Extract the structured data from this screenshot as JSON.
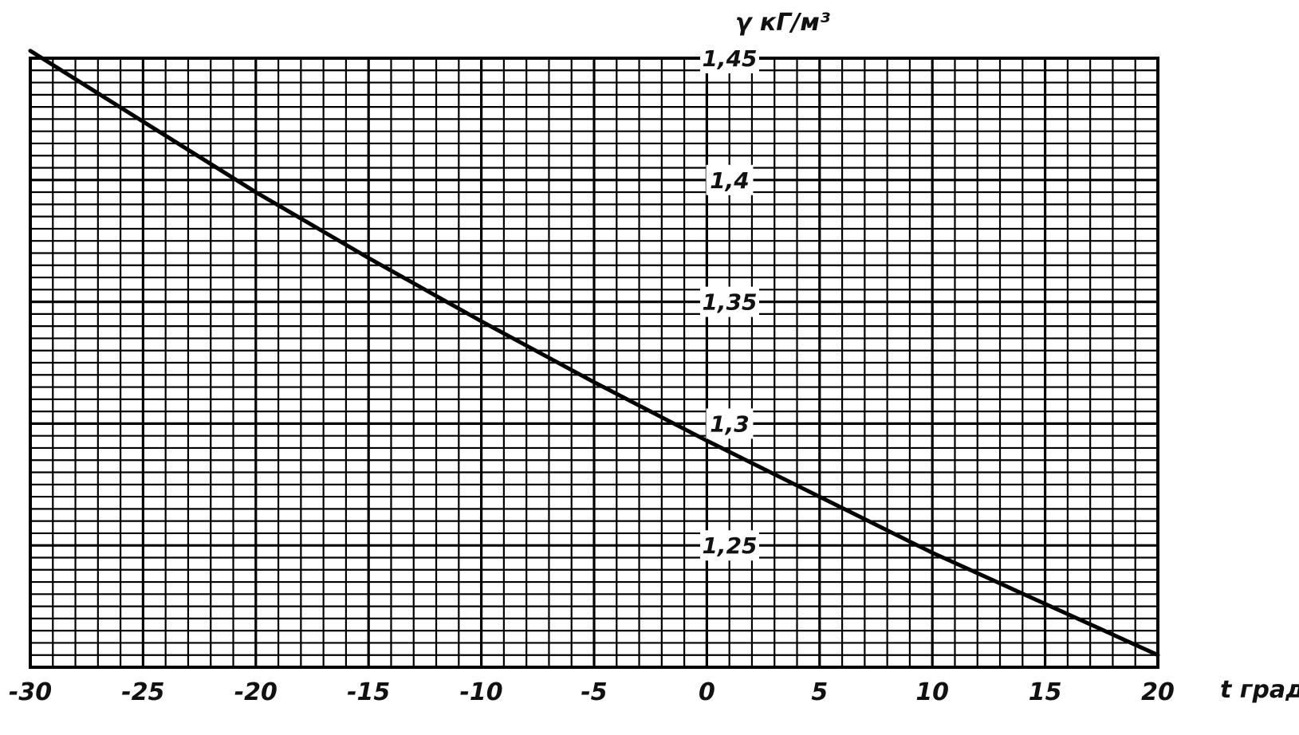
{
  "chart_data": {
    "type": "line",
    "title": "",
    "xlabel": "t град.",
    "ylabel": "γ кГ/м³",
    "xlim": [
      -30,
      20
    ],
    "ylim": [
      1.2,
      1.45
    ],
    "grid": true,
    "x_ticks": [
      "-30",
      "-25",
      "-20",
      "-15",
      "-10",
      "-5",
      "0",
      "5",
      "10",
      "15",
      "20"
    ],
    "y_ticks": [
      "1,45",
      "1,4",
      "1,35",
      "1,3",
      "1,25"
    ],
    "series": [
      {
        "x": [
          -30,
          -25,
          -20,
          -15,
          -10,
          -5,
          0,
          5,
          10,
          15,
          20
        ],
        "y": [
          1.453,
          1.424,
          1.395,
          1.368,
          1.342,
          1.317,
          1.293,
          1.27,
          1.247,
          1.226,
          1.205
        ]
      }
    ]
  }
}
